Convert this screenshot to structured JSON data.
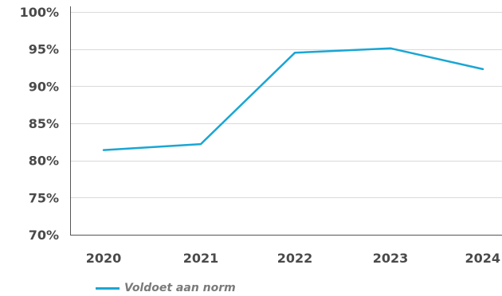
{
  "chart_data": {
    "type": "line",
    "categories": [
      "2020",
      "2021",
      "2022",
      "2023",
      "2024"
    ],
    "series": [
      {
        "name": "Voldoet aan norm",
        "values": [
          81.4,
          82.2,
          94.5,
          95.1,
          92.3
        ],
        "color": "#1aa6d4"
      }
    ],
    "ylim": [
      70,
      100
    ],
    "yticks": [
      70,
      75,
      80,
      85,
      90,
      95,
      100
    ],
    "ytick_labels": [
      "70%",
      "75%",
      "80%",
      "85%",
      "90%",
      "95%",
      "100%"
    ],
    "grid": true,
    "legend": "bottom-left"
  }
}
